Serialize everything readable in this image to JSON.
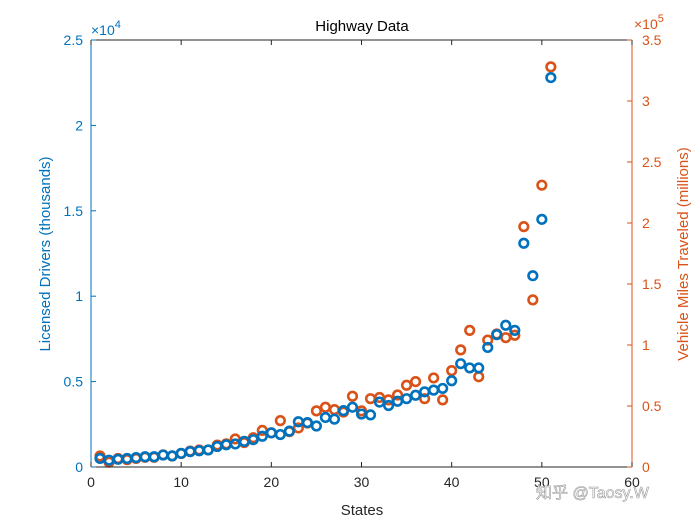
{
  "chart_data": {
    "type": "scatter",
    "title": "Highway Data",
    "xlabel": "States",
    "xlim": [
      0,
      60
    ],
    "xticks": [
      0,
      10,
      20,
      30,
      40,
      50,
      60
    ],
    "left_axis": {
      "label": "Licensed Drivers (thousands)",
      "lim": [
        0,
        25000
      ],
      "ticks": [
        0,
        5000,
        10000,
        15000,
        20000,
        25000
      ],
      "tick_labels": [
        "0",
        "0.5",
        "1",
        "1.5",
        "2",
        "2.5"
      ],
      "exponent_prefix": "×10",
      "exponent_power": "4",
      "color": "#0072BD"
    },
    "right_axis": {
      "label": "Vehicle Miles Traveled (millions)",
      "lim": [
        0,
        350000
      ],
      "ticks": [
        0,
        50000,
        100000,
        150000,
        200000,
        250000,
        300000,
        350000
      ],
      "tick_labels": [
        "0",
        "0.5",
        "1",
        "1.5",
        "2",
        "2.5",
        "3",
        "3.5"
      ],
      "exponent_prefix": "×10",
      "exponent_power": "5",
      "color": "#D95319"
    },
    "grid": false,
    "series": [
      {
        "axis": "left",
        "color": "#0072BD",
        "x": [
          1,
          2,
          3,
          4,
          5,
          6,
          7,
          8,
          9,
          10,
          11,
          12,
          13,
          14,
          15,
          16,
          17,
          18,
          19,
          20,
          21,
          22,
          23,
          24,
          25,
          26,
          27,
          28,
          29,
          30,
          31,
          32,
          33,
          34,
          35,
          36,
          37,
          38,
          39,
          40,
          41,
          42,
          43,
          44,
          45,
          46,
          47,
          48,
          49,
          50,
          51
        ],
        "y": [
          500,
          400,
          450,
          500,
          550,
          600,
          600,
          700,
          650,
          800,
          900,
          950,
          1000,
          1200,
          1300,
          1350,
          1500,
          1600,
          1800,
          2000,
          1900,
          2100,
          2650,
          2600,
          2400,
          2900,
          2800,
          3300,
          3500,
          3100,
          3050,
          3800,
          3600,
          3850,
          4000,
          4200,
          4400,
          4500,
          4600,
          5050,
          6050,
          5800,
          5800,
          7000,
          7750,
          8300,
          8000,
          13100,
          11200,
          14500,
          22800
        ]
      },
      {
        "axis": "right",
        "color": "#D95319",
        "x": [
          1,
          2,
          3,
          4,
          5,
          6,
          7,
          8,
          9,
          10,
          11,
          12,
          13,
          14,
          15,
          16,
          17,
          18,
          19,
          20,
          21,
          22,
          23,
          24,
          25,
          26,
          27,
          28,
          29,
          30,
          31,
          32,
          33,
          34,
          35,
          36,
          37,
          38,
          39,
          40,
          41,
          42,
          43,
          44,
          45,
          46,
          47,
          48,
          49,
          50,
          51
        ],
        "y": [
          9000,
          4000,
          7000,
          6000,
          7000,
          8000,
          8000,
          10000,
          9000,
          11000,
          13000,
          14000,
          14000,
          18000,
          19000,
          23000,
          20000,
          24000,
          30000,
          28000,
          38000,
          29000,
          32000,
          36000,
          46000,
          49000,
          47000,
          45000,
          58000,
          46000,
          56000,
          57000,
          55000,
          59000,
          67000,
          70000,
          56000,
          73000,
          55000,
          79000,
          96000,
          112000,
          74000,
          104000,
          109000,
          106000,
          108000,
          197000,
          137000,
          231000,
          328000
        ]
      }
    ]
  },
  "watermark": "知乎 @Taosy.W"
}
